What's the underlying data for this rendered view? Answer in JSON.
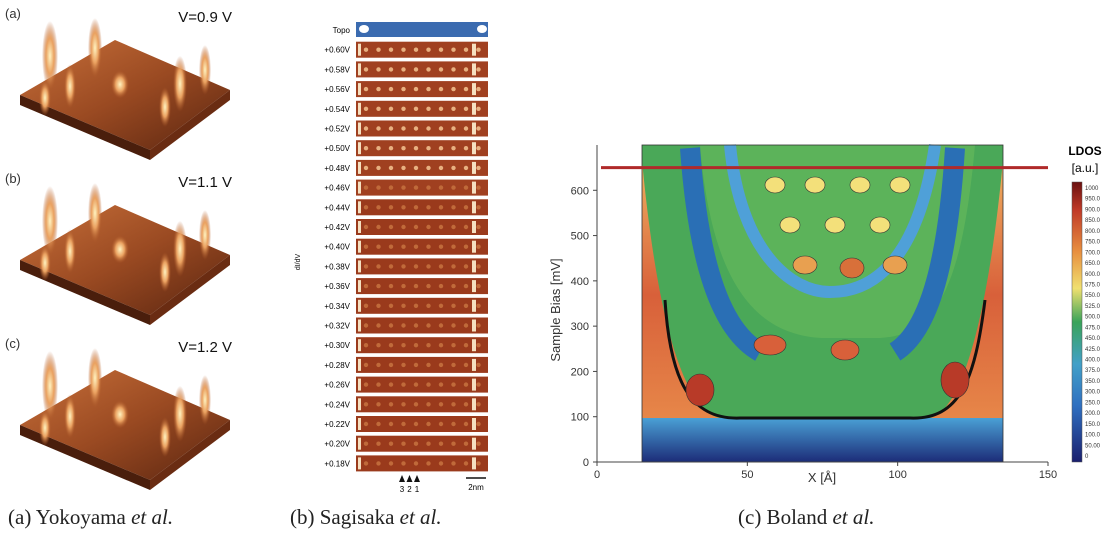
{
  "panel_a": {
    "subimages": [
      {
        "label": "(a)",
        "voltage": "V=0.9 V"
      },
      {
        "label": "(b)",
        "voltage": "V=1.1 V"
      },
      {
        "label": "(c)",
        "voltage": "V=1.2 V"
      }
    ],
    "caption": {
      "text": "(a) Yokoyama",
      "italic": "et al."
    }
  },
  "panel_b": {
    "topo_label": "Topo",
    "axis_label": "dI/dV",
    "biases": [
      "+0.60V",
      "+0.58V",
      "+0.56V",
      "+0.54V",
      "+0.52V",
      "+0.50V",
      "+0.48V",
      "+0.46V",
      "+0.44V",
      "+0.42V",
      "+0.40V",
      "+0.38V",
      "+0.36V",
      "+0.34V",
      "+0.32V",
      "+0.30V",
      "+0.28V",
      "+0.26V",
      "+0.24V",
      "+0.22V",
      "+0.20V",
      "+0.18V"
    ],
    "arrow_labels": [
      "3",
      "2",
      "1"
    ],
    "scale_bar": "2nm",
    "caption": {
      "text": "(b) Sagisaka",
      "italic": "et al."
    }
  },
  "panel_c": {
    "x_label": "X [Å]",
    "y_label": "Sample Bias [mV]",
    "xlim": [
      0,
      150
    ],
    "ylim": [
      0,
      700
    ],
    "xticks": [
      0,
      50,
      100,
      150
    ],
    "yticks": [
      0,
      100,
      200,
      300,
      400,
      500,
      600
    ],
    "marker_line": 650,
    "colorbar_title": "LDOS",
    "colorbar_unit": "[a.u.]",
    "colorbar_labels": [
      "1000",
      "950.0",
      "900.0",
      "850.0",
      "800.0",
      "750.0",
      "700.0",
      "650.0",
      "600.0",
      "575.0",
      "550.0",
      "525.0",
      "500.0",
      "475.0",
      "450.0",
      "425.0",
      "400.0",
      "375.0",
      "350.0",
      "300.0",
      "250.0",
      "200.0",
      "150.0",
      "100.0",
      "50.00",
      "0"
    ],
    "caption": {
      "text": "(c) Boland",
      "italic": "et al."
    }
  }
}
